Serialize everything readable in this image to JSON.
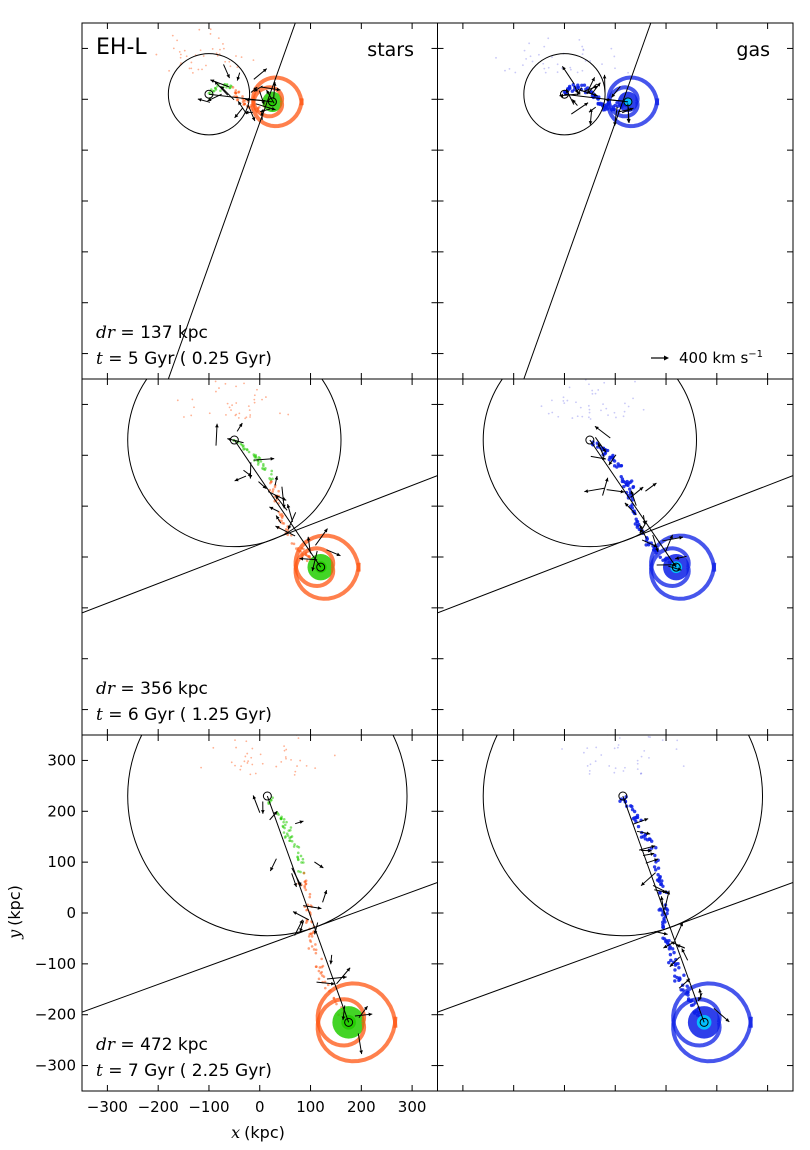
{
  "figure_label": "EH-L",
  "velocity_key": {
    "label": "400 km s",
    "exponent": "−1"
  },
  "axes": {
    "xlabel_var": "x",
    "xlabel_unit": "(kpc)",
    "ylabel_var": "y",
    "ylabel_unit": "(kpc)",
    "xlim": [
      -350,
      350
    ],
    "ylim": [
      -350,
      350
    ],
    "xticks": [
      -300,
      -200,
      -100,
      0,
      100,
      200,
      300
    ],
    "yticks": [
      -300,
      -200,
      -100,
      0,
      100,
      200,
      300
    ],
    "xtick_labels": [
      "−300",
      "−200",
      "−100",
      "0",
      "100",
      "200",
      "300"
    ],
    "ytick_labels": [
      "−300",
      "−200",
      "−100",
      "0",
      "100",
      "200",
      "300"
    ]
  },
  "columns": [
    "stars",
    "gas"
  ],
  "colors": {
    "stars_disk": "#22cc00",
    "stars_tail": "#ff5511",
    "gas_dense": "#0a1ee6",
    "gas_core": "#00ccff",
    "gas_diffuse": "#8888ee"
  },
  "chart_data": [
    {
      "type": "scatter",
      "row": 0,
      "dr_var": "dr",
      "dr_text": " =  137 kpc",
      "t_var": "t",
      "t_text": " = 5 Gyr ( 0.25 Gyr)",
      "halo_center": [
        -100,
        210
      ],
      "halo_radius": 80,
      "satellite": [
        25,
        195
      ],
      "cut_line": {
        "p1": [
          -180,
          -350
        ],
        "p2": [
          70,
          350
        ]
      }
    },
    {
      "type": "scatter",
      "row": 1,
      "dr_var": "dr",
      "dr_text": " =  356 kpc",
      "t_var": "t",
      "t_text": " = 6 Gyr ( 1.25 Gyr)",
      "halo_center": [
        -50,
        230
      ],
      "halo_radius": 210,
      "satellite": [
        120,
        -20
      ],
      "cut_line": {
        "p1": [
          -350,
          -110
        ],
        "p2": [
          350,
          160
        ]
      }
    },
    {
      "type": "scatter",
      "row": 2,
      "dr_var": "dr",
      "dr_text": " =  472 kpc",
      "t_var": "t",
      "t_text": " = 7 Gyr ( 2.25 Gyr)",
      "halo_center": [
        15,
        230
      ],
      "halo_radius": 275,
      "satellite": [
        175,
        -215
      ],
      "cut_line": {
        "p1": [
          -350,
          -195
        ],
        "p2": [
          350,
          60
        ]
      }
    }
  ]
}
